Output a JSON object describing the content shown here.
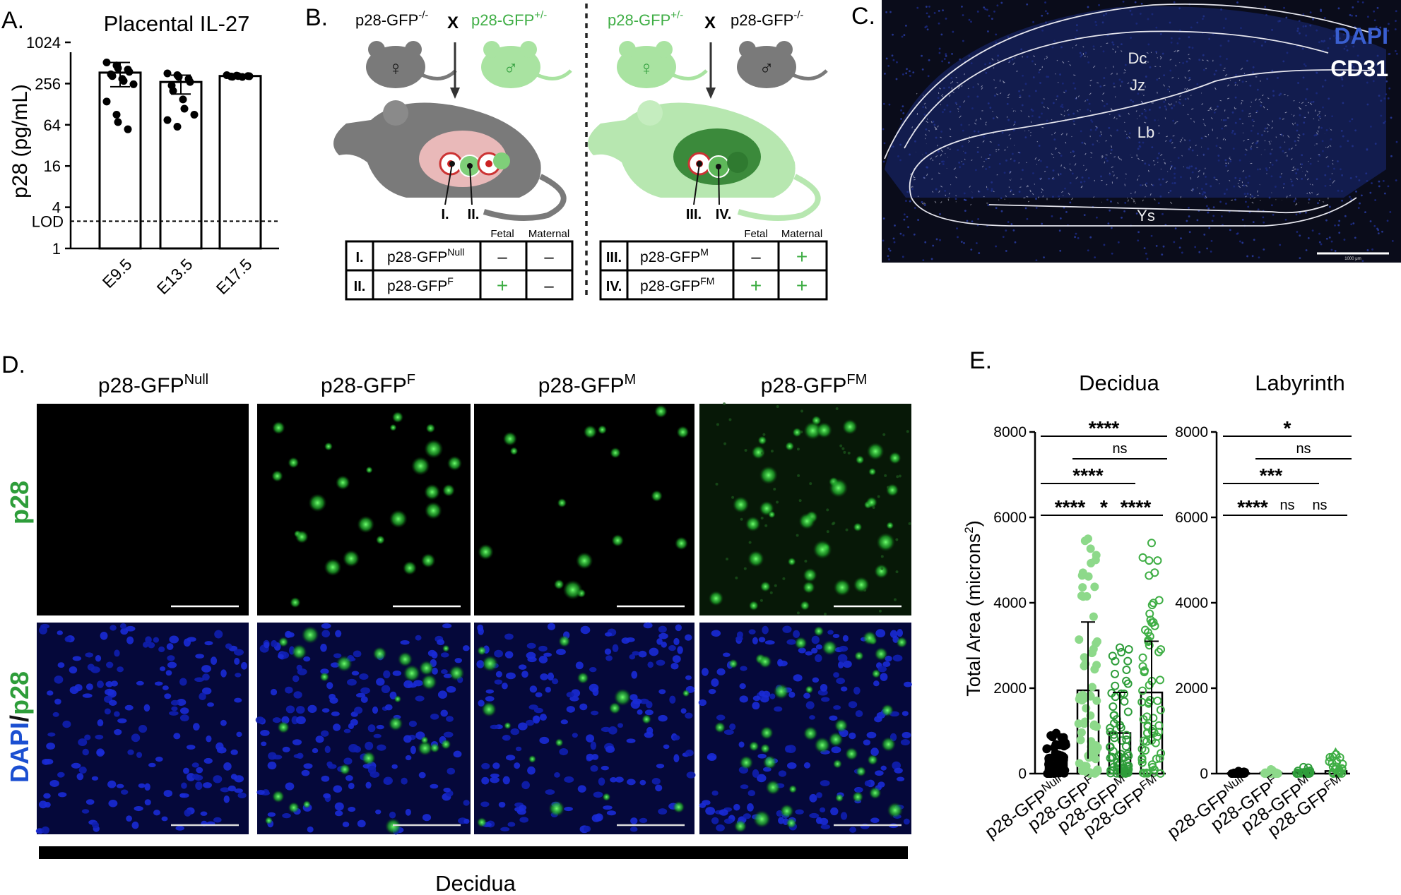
{
  "panels": {
    "A": {
      "label": "A.",
      "chart_data": {
        "type": "bar",
        "title": "Placental IL-27",
        "ylabel": "p28 (pg/mL)",
        "yscale": "log2",
        "ylim": [
          1,
          1024
        ],
        "yticks": [
          1,
          4,
          16,
          64,
          256,
          1024
        ],
        "lod_label": "LOD",
        "lod_value": 2.5,
        "categories": [
          "E9.5",
          "E13.5",
          "E17.5"
        ],
        "values": [
          370,
          270,
          330
        ],
        "errors": [
          [
            230,
            520
          ],
          [
            180,
            340
          ],
          [
            320,
            340
          ]
        ],
        "points": [
          [
            520,
            470,
            430,
            410,
            380,
            350,
            330,
            300,
            280,
            250,
            140,
            90,
            70,
            55
          ],
          [
            360,
            340,
            320,
            300,
            270,
            240,
            200,
            150,
            110,
            90,
            75,
            60
          ],
          [
            340,
            335,
            330,
            330,
            328,
            325,
            322,
            320
          ]
        ]
      }
    },
    "B": {
      "label": "B.",
      "left_cross": {
        "female": "p28-GFP",
        "female_sup": "-/-",
        "x": "X",
        "male": "p28-GFP",
        "male_sup": "+/-"
      },
      "right_cross": {
        "female": "p28-GFP",
        "female_sup": "+/-",
        "x": "X",
        "male": "p28-GFP",
        "male_sup": "-/-"
      },
      "female_symbol": "♀",
      "male_symbol": "♂",
      "markers_left": [
        "I.",
        "II."
      ],
      "markers_right": [
        "III.",
        "IV."
      ],
      "table_headers": [
        "Fetal",
        "Maternal"
      ],
      "left_table": [
        {
          "roman": "I.",
          "name": "p28-GFP",
          "sup": "Null",
          "fetal": "–",
          "maternal": "–"
        },
        {
          "roman": "II.",
          "name": "p28-GFP",
          "sup": "F",
          "fetal": "+",
          "maternal": "–"
        }
      ],
      "right_table": [
        {
          "roman": "III.",
          "name": "p28-GFP",
          "sup": "M",
          "fetal": "–",
          "maternal": "+"
        },
        {
          "roman": "IV.",
          "name": "p28-GFP",
          "sup": "FM",
          "fetal": "+",
          "maternal": "+"
        }
      ]
    },
    "C": {
      "label": "C.",
      "legend": [
        "DAPI",
        "CD31"
      ],
      "regions": [
        "Dc",
        "Jz",
        "Lb",
        "Ys"
      ],
      "scale_text": "1000 μm"
    },
    "D": {
      "label": "D.",
      "columns": [
        {
          "name": "p28-GFP",
          "sup": "Null"
        },
        {
          "name": "p28-GFP",
          "sup": "F"
        },
        {
          "name": "p28-GFP",
          "sup": "M"
        },
        {
          "name": "p28-GFP",
          "sup": "FM"
        }
      ],
      "row1_label": "p28",
      "row2_label_a": "DAPI",
      "row2_label_sep": "/",
      "row2_label_b": "p28",
      "footer": "Decidua"
    },
    "E": {
      "label": "E.",
      "ylabel": "Total Area (microns",
      "ylabel_sup": "2",
      "ylabel_end": ")",
      "chart_data": [
        {
          "type": "bar",
          "title": "Decidua",
          "ylim": [
            0,
            8000
          ],
          "yticks": [
            0,
            2000,
            4000,
            6000,
            8000
          ],
          "categories": [
            "p28-GFPNull",
            "p28-GFPF",
            "p28-GFPM",
            "p28-GFPFM"
          ],
          "category_base": "p28-GFP",
          "category_sups": [
            "Null",
            "F",
            "M",
            "FM"
          ],
          "values": [
            300,
            1950,
            950,
            1900
          ],
          "errors": [
            [
              0,
              600
            ],
            [
              350,
              3550
            ],
            [
              0,
              1900
            ],
            [
              700,
              3100
            ]
          ],
          "max_points": [
            950,
            5500,
            2950,
            5400
          ],
          "significance": [
            {
              "a": 0,
              "b": 3,
              "text": "****"
            },
            {
              "a": 1,
              "b": 3,
              "text": "ns"
            },
            {
              "a": 0,
              "b": 2,
              "text": "****"
            },
            {
              "a": 0,
              "b": 1,
              "text": "****"
            },
            {
              "a": 1,
              "b": 2,
              "text": "*"
            },
            {
              "a": 2,
              "b": 3,
              "text": "****"
            }
          ]
        },
        {
          "type": "bar",
          "title": "Labyrinth",
          "ylim": [
            0,
            8000
          ],
          "yticks": [
            0,
            2000,
            4000,
            6000,
            8000
          ],
          "categories": [
            "p28-GFPNull",
            "p28-GFPF",
            "p28-GFPM",
            "p28-GFPFM"
          ],
          "category_base": "p28-GFP",
          "category_sups": [
            "Null",
            "F",
            "M",
            "FM"
          ],
          "values": [
            10,
            20,
            30,
            60
          ],
          "errors": [
            [
              0,
              30
            ],
            [
              0,
              50
            ],
            [
              0,
              70
            ],
            [
              0,
              150
            ]
          ],
          "max_points": [
            60,
            100,
            150,
            450
          ],
          "significance": [
            {
              "a": 0,
              "b": 3,
              "text": "*"
            },
            {
              "a": 1,
              "b": 3,
              "text": "ns"
            },
            {
              "a": 0,
              "b": 2,
              "text": "***"
            },
            {
              "a": 0,
              "b": 1,
              "text": "****"
            },
            {
              "a": 1,
              "b": 2,
              "text": "ns"
            },
            {
              "a": 2,
              "b": 3,
              "text": "ns"
            }
          ]
        }
      ]
    }
  },
  "colors": {
    "green": "#2e9d3a",
    "light_green": "#8dd98a",
    "mid_green": "#3fae45",
    "dark_green": "#1d7a2a",
    "dapi_blue": "#2548c8",
    "mouse_grey": "#7a7a7a"
  }
}
